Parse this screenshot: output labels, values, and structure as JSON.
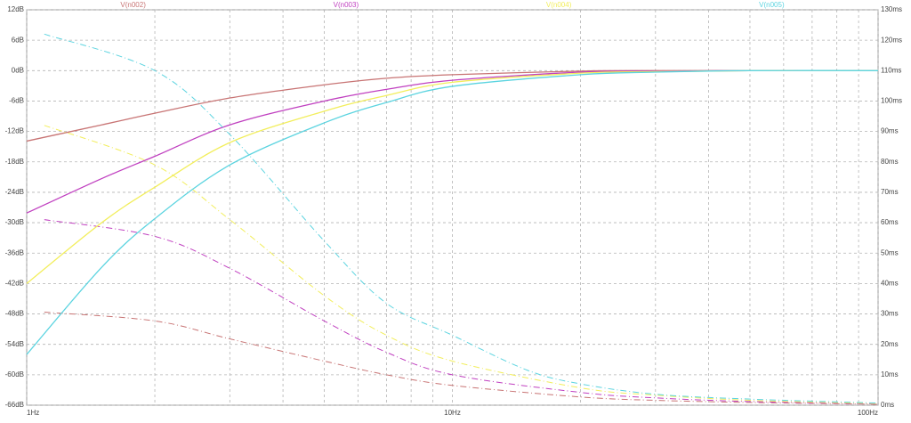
{
  "chart_data": {
    "type": "line",
    "log_x": true,
    "grid": true,
    "xlim": [
      1,
      100
    ],
    "xticks": [
      {
        "value": 1,
        "label": "1Hz"
      },
      {
        "value": 10,
        "label": "10Hz"
      },
      {
        "value": 100,
        "label": "100Hz"
      }
    ],
    "x_minor_ticks": [
      2,
      3,
      4,
      5,
      6,
      7,
      8,
      9,
      20,
      30,
      40,
      50,
      60,
      70,
      80,
      90
    ],
    "ylim": [
      -66,
      12
    ],
    "yticks": [
      {
        "value": 12,
        "label": "12dB"
      },
      {
        "value": 6,
        "label": "6dB"
      },
      {
        "value": 0,
        "label": "0dB"
      },
      {
        "value": -6,
        "label": "-6dB"
      },
      {
        "value": -12,
        "label": "-12dB"
      },
      {
        "value": -18,
        "label": "-18dB"
      },
      {
        "value": -24,
        "label": "-24dB"
      },
      {
        "value": -30,
        "label": "-30dB"
      },
      {
        "value": -36,
        "label": "-36dB"
      },
      {
        "value": -42,
        "label": "-42dB"
      },
      {
        "value": -48,
        "label": "-48dB"
      },
      {
        "value": -54,
        "label": "-54dB"
      },
      {
        "value": -60,
        "label": "-60dB"
      },
      {
        "value": -66,
        "label": "-66dB"
      }
    ],
    "y2lim": [
      0,
      130
    ],
    "y2ticks": [
      {
        "value": 130,
        "label": "130ms"
      },
      {
        "value": 120,
        "label": "120ms"
      },
      {
        "value": 110,
        "label": "110ms"
      },
      {
        "value": 100,
        "label": "100ms"
      },
      {
        "value": 90,
        "label": "90ms"
      },
      {
        "value": 80,
        "label": "80ms"
      },
      {
        "value": 70,
        "label": "70ms"
      },
      {
        "value": 60,
        "label": "60ms"
      },
      {
        "value": 50,
        "label": "50ms"
      },
      {
        "value": 40,
        "label": "40ms"
      },
      {
        "value": 30,
        "label": "30ms"
      },
      {
        "value": 20,
        "label": "20ms"
      },
      {
        "value": 10,
        "label": "10ms"
      },
      {
        "value": 0,
        "label": "0ms"
      }
    ],
    "series": [
      {
        "name": "V(n002)",
        "color": "#c87474",
        "x": [
          1,
          1.5,
          2,
          3,
          5,
          7,
          10,
          20,
          30,
          50,
          100
        ],
        "values": [
          -13.9,
          -10.7,
          -8.4,
          -5.4,
          -2.8,
          -1.5,
          -0.8,
          -0.1,
          0,
          0,
          0
        ],
        "delay_x": [
          1.1,
          2,
          3,
          5,
          7,
          10,
          20,
          30,
          50,
          100
        ],
        "delay_values": [
          30.6,
          27.7,
          21.8,
          14.5,
          10,
          6.5,
          2.7,
          1.6,
          0.9,
          0.3
        ]
      },
      {
        "name": "V(n003)",
        "color": "#c040c0",
        "x": [
          1,
          1.5,
          2,
          3,
          5,
          7,
          10,
          20,
          30,
          50,
          100
        ],
        "values": [
          -28.1,
          -21.3,
          -16.9,
          -10.7,
          -6,
          -3.7,
          -1.9,
          -0.3,
          -0.1,
          0,
          0
        ],
        "delay_x": [
          1.1,
          2,
          3,
          5,
          7,
          10,
          20,
          30,
          50,
          100
        ],
        "delay_values": [
          61,
          55.5,
          45,
          27.7,
          17.4,
          10,
          4.2,
          2.4,
          1.2,
          0.4
        ]
      },
      {
        "name": "V(n004)",
        "color": "#f2ee5c",
        "x": [
          1,
          1.5,
          2,
          3,
          5,
          7,
          10,
          20,
          30,
          50,
          100
        ],
        "values": [
          -42,
          -30,
          -23,
          -14.2,
          -8,
          -4.9,
          -2.3,
          -0.5,
          -0.2,
          0,
          0
        ],
        "delay_x": [
          1.1,
          2,
          3,
          5,
          7,
          10,
          20,
          30,
          50,
          100
        ],
        "delay_values": [
          92,
          79,
          61,
          36,
          23,
          14.5,
          5.7,
          3.3,
          1.6,
          0.5
        ]
      },
      {
        "name": "V(n005)",
        "color": "#5cd4e0",
        "x": [
          1,
          1.5,
          2,
          3,
          5,
          7,
          10,
          20,
          30,
          50,
          100
        ],
        "values": [
          -56,
          -38.8,
          -29.2,
          -18.6,
          -10.3,
          -6.3,
          -3.1,
          -0.8,
          -0.3,
          0,
          0
        ],
        "delay_x": [
          1.1,
          2,
          3,
          5,
          7,
          10,
          15,
          20,
          30,
          50,
          100
        ],
        "delay_values": [
          122,
          110,
          89,
          54,
          33.5,
          23,
          11.5,
          7,
          3.6,
          2,
          0.7
        ]
      }
    ]
  }
}
